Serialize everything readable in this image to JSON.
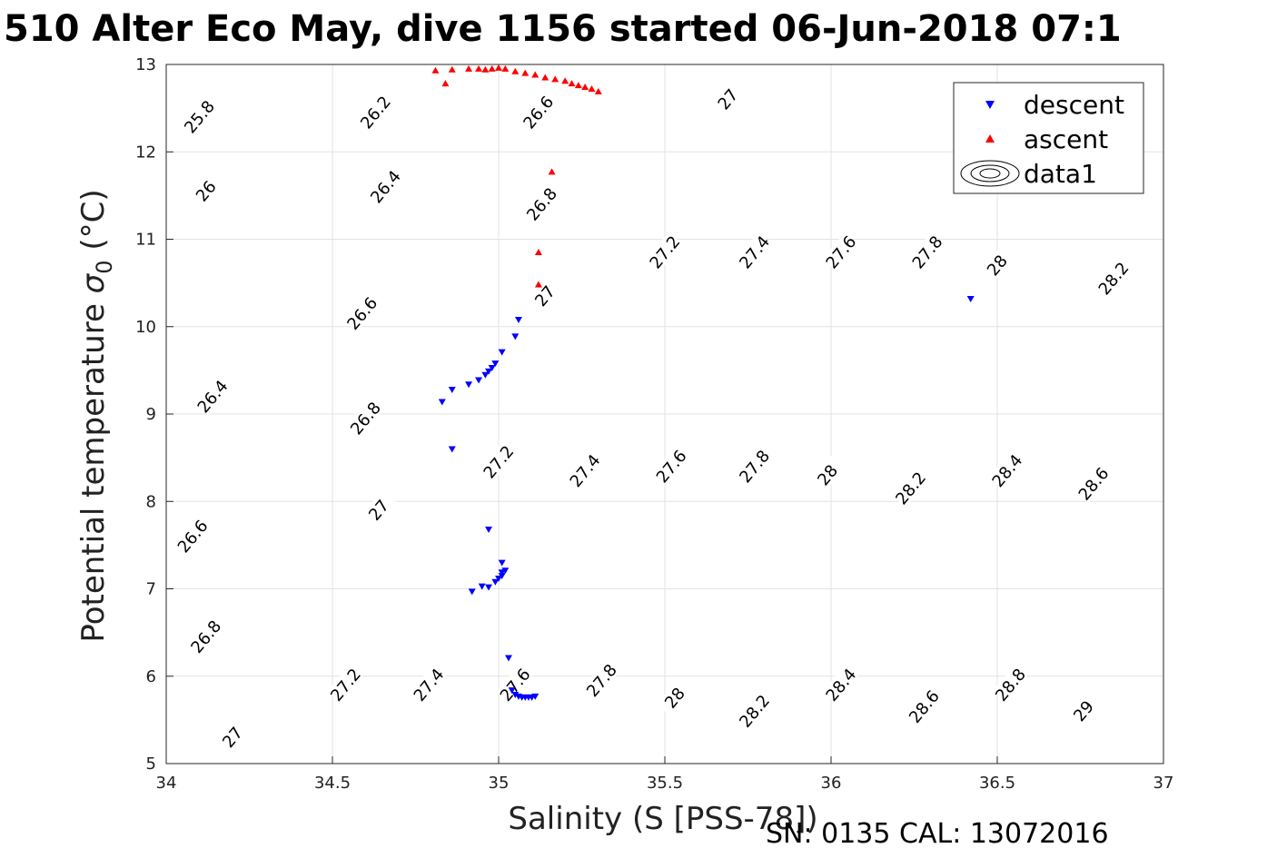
{
  "chart_data": {
    "type": "scatter",
    "title": "510 Alter Eco May, dive 1156 started 06-Jun-2018 07:1",
    "xlabel": "Salinity (S [PSS-78])",
    "ylabel_main": "Potential temperature ",
    "ylabel_sigma": "σ",
    "ylabel_sub": "0",
    "ylabel_unit": " (°C)",
    "footer": "SN: 0135  CAL: 13072016",
    "xlim": [
      34,
      37
    ],
    "ylim": [
      5,
      13
    ],
    "xticks": [
      "34",
      "34.5",
      "35",
      "35.5",
      "36",
      "36.5",
      "37"
    ],
    "yticks": [
      "5",
      "6",
      "7",
      "8",
      "9",
      "10",
      "11",
      "12",
      "13"
    ],
    "grid": true,
    "legend_position": "top-right",
    "legend": [
      "descent",
      "ascent",
      "data1"
    ],
    "series": [
      {
        "name": "descent",
        "marker": "triangle-down",
        "color": "#0000ff",
        "points": [
          [
            34.83,
            9.14
          ],
          [
            34.86,
            9.28
          ],
          [
            34.91,
            9.34
          ],
          [
            34.94,
            9.39
          ],
          [
            34.96,
            9.45
          ],
          [
            34.97,
            9.49
          ],
          [
            34.98,
            9.53
          ],
          [
            34.99,
            9.58
          ],
          [
            35.01,
            9.71
          ],
          [
            35.06,
            10.08
          ],
          [
            35.05,
            9.89
          ],
          [
            34.86,
            8.6
          ],
          [
            34.97,
            7.68
          ],
          [
            35.01,
            7.3
          ],
          [
            34.92,
            6.97
          ],
          [
            34.95,
            7.03
          ],
          [
            34.97,
            7.02
          ],
          [
            34.99,
            7.08
          ],
          [
            35.0,
            7.12
          ],
          [
            35.01,
            7.15
          ],
          [
            35.01,
            7.19
          ],
          [
            35.02,
            7.21
          ],
          [
            35.03,
            6.21
          ],
          [
            35.04,
            5.84
          ],
          [
            35.05,
            5.79
          ],
          [
            35.06,
            5.77
          ],
          [
            35.07,
            5.76
          ],
          [
            35.08,
            5.76
          ],
          [
            35.09,
            5.76
          ],
          [
            35.1,
            5.76
          ],
          [
            35.11,
            5.77
          ],
          [
            36.42,
            10.32
          ]
        ]
      },
      {
        "name": "ascent",
        "marker": "triangle-up",
        "color": "#ff0000",
        "points": [
          [
            34.81,
            12.93
          ],
          [
            34.84,
            12.78
          ],
          [
            34.86,
            12.94
          ],
          [
            34.91,
            12.95
          ],
          [
            34.94,
            12.95
          ],
          [
            34.96,
            12.94
          ],
          [
            34.98,
            12.95
          ],
          [
            35.0,
            12.96
          ],
          [
            35.02,
            12.95
          ],
          [
            35.05,
            12.92
          ],
          [
            35.08,
            12.9
          ],
          [
            35.11,
            12.88
          ],
          [
            35.14,
            12.85
          ],
          [
            35.17,
            12.83
          ],
          [
            35.2,
            12.81
          ],
          [
            35.22,
            12.78
          ],
          [
            35.24,
            12.76
          ],
          [
            35.26,
            12.74
          ],
          [
            35.28,
            12.72
          ],
          [
            35.3,
            12.69
          ],
          [
            35.16,
            11.77
          ],
          [
            35.12,
            10.85
          ],
          [
            35.12,
            10.48
          ]
        ]
      }
    ],
    "contour_labels": [
      {
        "t": "25.8",
        "s": 34.1,
        "T": 12.4
      },
      {
        "t": "26",
        "s": 34.12,
        "T": 11.55
      },
      {
        "t": "26.2",
        "s": 34.63,
        "T": 12.45
      },
      {
        "t": "26.4",
        "s": 34.66,
        "T": 11.6
      },
      {
        "t": "26.6",
        "s": 35.12,
        "T": 12.45
      },
      {
        "t": "26.8",
        "s": 35.13,
        "T": 11.4
      },
      {
        "t": "27",
        "s": 35.69,
        "T": 12.6
      },
      {
        "t": "26.6",
        "s": 34.59,
        "T": 10.15
      },
      {
        "t": "27",
        "s": 35.14,
        "T": 10.35
      },
      {
        "t": "27.2",
        "s": 35.5,
        "T": 10.85
      },
      {
        "t": "27.4",
        "s": 35.77,
        "T": 10.85
      },
      {
        "t": "27.6",
        "s": 36.03,
        "T": 10.85
      },
      {
        "t": "27.8",
        "s": 36.29,
        "T": 10.85
      },
      {
        "t": "28",
        "s": 36.5,
        "T": 10.7
      },
      {
        "t": "28.2",
        "s": 36.85,
        "T": 10.55
      },
      {
        "t": "26.4",
        "s": 34.14,
        "T": 9.2
      },
      {
        "t": "26.8",
        "s": 34.6,
        "T": 8.95
      },
      {
        "t": "27.2",
        "s": 35.0,
        "T": 8.45
      },
      {
        "t": "27.4",
        "s": 35.26,
        "T": 8.35
      },
      {
        "t": "27.6",
        "s": 35.52,
        "T": 8.4
      },
      {
        "t": "27.8",
        "s": 35.77,
        "T": 8.4
      },
      {
        "t": "28",
        "s": 35.99,
        "T": 8.3
      },
      {
        "t": "28.2",
        "s": 36.24,
        "T": 8.15
      },
      {
        "t": "28.4",
        "s": 36.53,
        "T": 8.35
      },
      {
        "t": "28.6",
        "s": 36.79,
        "T": 8.2
      },
      {
        "t": "26.6",
        "s": 34.08,
        "T": 7.6
      },
      {
        "t": "27",
        "s": 34.64,
        "T": 7.9
      },
      {
        "t": "26.8",
        "s": 34.12,
        "T": 6.45
      },
      {
        "t": "27",
        "s": 34.2,
        "T": 5.3
      },
      {
        "t": "27.2",
        "s": 34.54,
        "T": 5.9
      },
      {
        "t": "27.4",
        "s": 34.79,
        "T": 5.9
      },
      {
        "t": "27.6",
        "s": 35.05,
        "T": 5.9
      },
      {
        "t": "27.8",
        "s": 35.31,
        "T": 5.95
      },
      {
        "t": "28",
        "s": 35.53,
        "T": 5.75
      },
      {
        "t": "28.2",
        "s": 35.77,
        "T": 5.6
      },
      {
        "t": "28.4",
        "s": 36.03,
        "T": 5.9
      },
      {
        "t": "28.6",
        "s": 36.28,
        "T": 5.65
      },
      {
        "t": "28.8",
        "s": 36.54,
        "T": 5.9
      },
      {
        "t": "29",
        "s": 36.76,
        "T": 5.6
      }
    ]
  }
}
